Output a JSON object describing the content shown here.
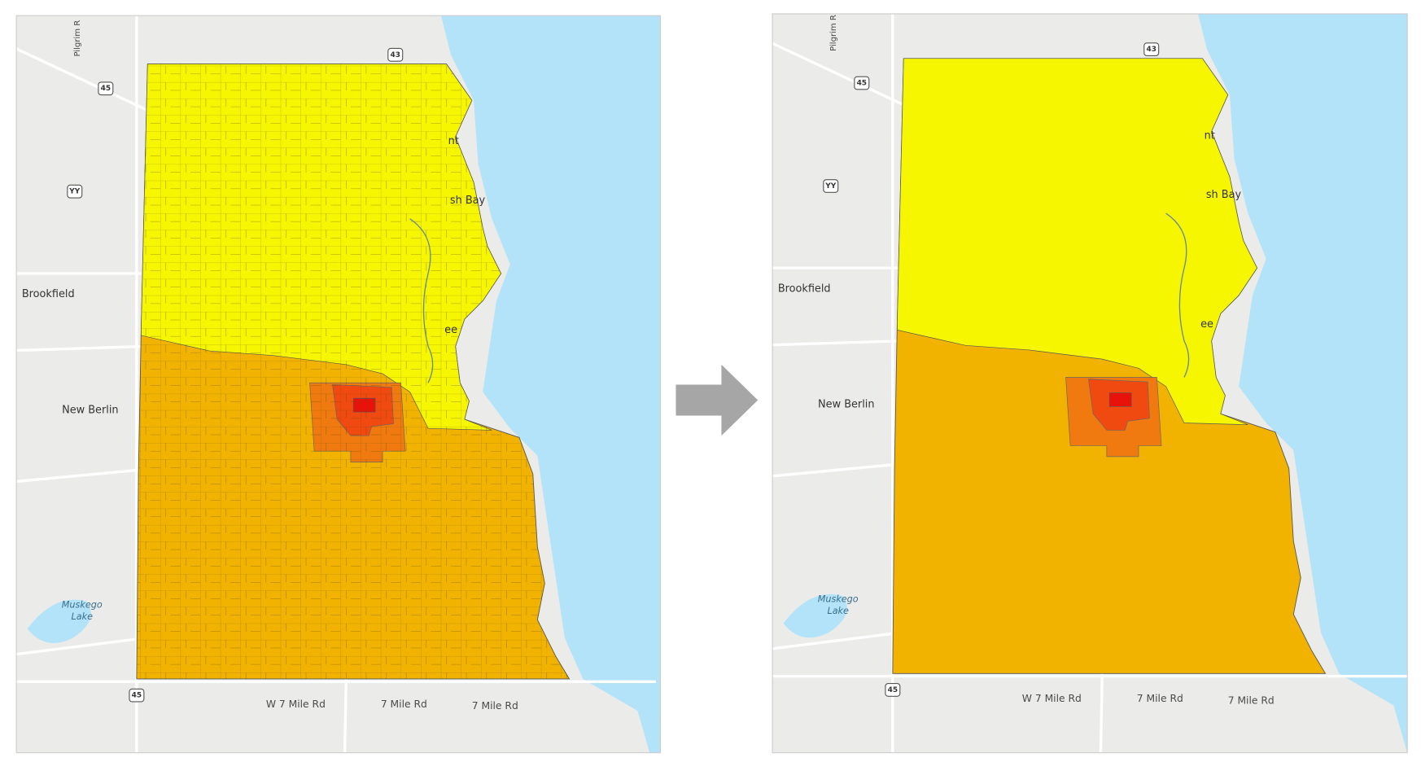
{
  "maps": [
    {
      "labels": [
        "Pilgrim R",
        "43",
        "45",
        "YY",
        "Brookfield",
        "New Berlin",
        "Muskego",
        "Lake",
        "45",
        "W 7 Mile Rd",
        "7 Mile Rd",
        "7 Mile Rd",
        "nt",
        "sh Bay",
        "ee"
      ]
    },
    {
      "labels": [
        "Pilgrim R",
        "43",
        "45",
        "YY",
        "Brookfield",
        "New Berlin",
        "Muskego",
        "Lake",
        "45",
        "W 7 Mile Rd",
        "7 Mile Rd",
        "7 Mile Rd",
        "nt",
        "sh Bay",
        "ee"
      ]
    }
  ]
}
